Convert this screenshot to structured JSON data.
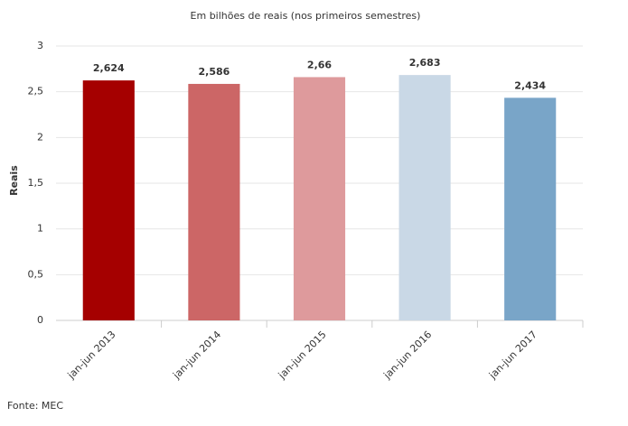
{
  "chart_data": {
    "type": "bar",
    "title": "Em bilhões de reais (nos primeiros semestres)",
    "ylabel": "Reais",
    "categories": [
      "jan-jun 2013",
      "jan-jun 2014",
      "jan-jun 2015",
      "jan-jun 2016",
      "jan-jun 2017"
    ],
    "values": [
      2.624,
      2.586,
      2.66,
      2.683,
      2.434
    ],
    "value_labels": [
      "2,624",
      "2,586",
      "2,66",
      "2,683",
      "2,434"
    ],
    "colors": [
      "#a50000",
      "#cc6666",
      "#de9a9c",
      "#c9d8e6",
      "#79a5c8"
    ],
    "ylim": [
      0,
      3
    ],
    "yticks": [
      0,
      {
        "value": 0.5,
        "label": "0,5"
      },
      1,
      {
        "value": 1.5,
        "label": "1,5"
      },
      2,
      {
        "value": 2.5,
        "label": "2,5"
      },
      3
    ],
    "grid": true,
    "source": "Fonte: MEC"
  }
}
